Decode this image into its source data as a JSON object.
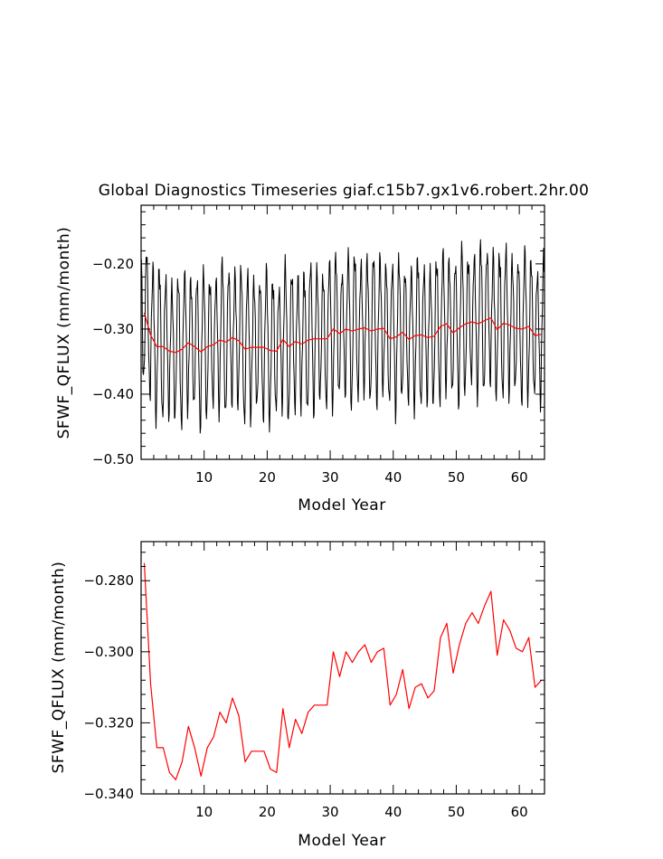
{
  "chart_data": [
    {
      "type": "line",
      "title": "Global Diagnostics Timeseries giaf.c15b7.gx1v6.robert.2hr.00",
      "xlabel": "Model Year",
      "ylabel": "SFWF_QFLUX (mm/month)",
      "xlim": [
        0,
        64
      ],
      "ylim": [
        -0.5,
        -0.11
      ],
      "xticks": [
        10,
        20,
        30,
        40,
        50,
        60
      ],
      "yticks": [
        -0.5,
        -0.4,
        -0.3,
        -0.2
      ],
      "ytick_labels": [
        "−0.50",
        "−0.40",
        "−0.30",
        "−0.20"
      ],
      "series": [
        {
          "kind": "monthly",
          "color": "#000000",
          "x_start": 0.0417,
          "x_step": 0.0833,
          "seasonal_cycle": [
            -0.24,
            -0.285,
            -0.34,
            -0.39,
            -0.415,
            -0.405,
            -0.36,
            -0.31,
            -0.26,
            -0.22,
            -0.205,
            -0.215
          ],
          "annual_means": [
            -0.275,
            -0.309,
            -0.327,
            -0.327,
            -0.334,
            -0.336,
            -0.331,
            -0.321,
            -0.327,
            -0.335,
            -0.327,
            -0.324,
            -0.317,
            -0.32,
            -0.313,
            -0.318,
            -0.331,
            -0.328,
            -0.328,
            -0.328,
            -0.333,
            -0.334,
            -0.316,
            -0.327,
            -0.319,
            -0.323,
            -0.317,
            -0.315,
            -0.315,
            -0.315,
            -0.3,
            -0.307,
            -0.3,
            -0.303,
            -0.3,
            -0.298,
            -0.303,
            -0.3,
            -0.299,
            -0.315,
            -0.312,
            -0.305,
            -0.316,
            -0.31,
            -0.309,
            -0.313,
            -0.311,
            -0.296,
            -0.292,
            -0.306,
            -0.298,
            -0.292,
            -0.289,
            -0.292,
            -0.287,
            -0.283,
            -0.301,
            -0.291,
            -0.294,
            -0.299,
            -0.3,
            -0.296,
            -0.31,
            -0.308
          ]
        },
        {
          "kind": "annual",
          "color": "#ff0000",
          "x": [
            0.5,
            1.5,
            2.5,
            3.5,
            4.5,
            5.5,
            6.5,
            7.5,
            8.5,
            9.5,
            10.5,
            11.5,
            12.5,
            13.5,
            14.5,
            15.5,
            16.5,
            17.5,
            18.5,
            19.5,
            20.5,
            21.5,
            22.5,
            23.5,
            24.5,
            25.5,
            26.5,
            27.5,
            28.5,
            29.5,
            30.5,
            31.5,
            32.5,
            33.5,
            34.5,
            35.5,
            36.5,
            37.5,
            38.5,
            39.5,
            40.5,
            41.5,
            42.5,
            43.5,
            44.5,
            45.5,
            46.5,
            47.5,
            48.5,
            49.5,
            50.5,
            51.5,
            52.5,
            53.5,
            54.5,
            55.5,
            56.5,
            57.5,
            58.5,
            59.5,
            60.5,
            61.5,
            62.5,
            63.5
          ],
          "y": [
            -0.275,
            -0.309,
            -0.327,
            -0.327,
            -0.334,
            -0.336,
            -0.331,
            -0.321,
            -0.327,
            -0.335,
            -0.327,
            -0.324,
            -0.317,
            -0.32,
            -0.313,
            -0.318,
            -0.331,
            -0.328,
            -0.328,
            -0.328,
            -0.333,
            -0.334,
            -0.316,
            -0.327,
            -0.319,
            -0.323,
            -0.317,
            -0.315,
            -0.315,
            -0.315,
            -0.3,
            -0.307,
            -0.3,
            -0.303,
            -0.3,
            -0.298,
            -0.303,
            -0.3,
            -0.299,
            -0.315,
            -0.312,
            -0.305,
            -0.316,
            -0.31,
            -0.309,
            -0.313,
            -0.311,
            -0.296,
            -0.292,
            -0.306,
            -0.298,
            -0.292,
            -0.289,
            -0.292,
            -0.287,
            -0.283,
            -0.301,
            -0.291,
            -0.294,
            -0.299,
            -0.3,
            -0.296,
            -0.31,
            -0.308
          ]
        }
      ]
    },
    {
      "type": "line",
      "title": "",
      "xlabel": "Model Year",
      "ylabel": "SFWF_QFLUX (mm/month)",
      "xlim": [
        0,
        64
      ],
      "ylim": [
        -0.34,
        -0.269
      ],
      "xticks": [
        10,
        20,
        30,
        40,
        50,
        60
      ],
      "yticks": [
        -0.34,
        -0.32,
        -0.3,
        -0.28
      ],
      "ytick_labels": [
        "−0.340",
        "−0.320",
        "−0.300",
        "−0.280"
      ],
      "series": [
        {
          "kind": "annual",
          "color": "#ff0000",
          "x": [
            0.5,
            1.5,
            2.5,
            3.5,
            4.5,
            5.5,
            6.5,
            7.5,
            8.5,
            9.5,
            10.5,
            11.5,
            12.5,
            13.5,
            14.5,
            15.5,
            16.5,
            17.5,
            18.5,
            19.5,
            20.5,
            21.5,
            22.5,
            23.5,
            24.5,
            25.5,
            26.5,
            27.5,
            28.5,
            29.5,
            30.5,
            31.5,
            32.5,
            33.5,
            34.5,
            35.5,
            36.5,
            37.5,
            38.5,
            39.5,
            40.5,
            41.5,
            42.5,
            43.5,
            44.5,
            45.5,
            46.5,
            47.5,
            48.5,
            49.5,
            50.5,
            51.5,
            52.5,
            53.5,
            54.5,
            55.5,
            56.5,
            57.5,
            58.5,
            59.5,
            60.5,
            61.5,
            62.5,
            63.5
          ],
          "y": [
            -0.275,
            -0.309,
            -0.327,
            -0.327,
            -0.334,
            -0.336,
            -0.331,
            -0.321,
            -0.327,
            -0.335,
            -0.327,
            -0.324,
            -0.317,
            -0.32,
            -0.313,
            -0.318,
            -0.331,
            -0.328,
            -0.328,
            -0.328,
            -0.333,
            -0.334,
            -0.316,
            -0.327,
            -0.319,
            -0.323,
            -0.317,
            -0.315,
            -0.315,
            -0.315,
            -0.3,
            -0.307,
            -0.3,
            -0.303,
            -0.3,
            -0.298,
            -0.303,
            -0.3,
            -0.299,
            -0.315,
            -0.312,
            -0.305,
            -0.316,
            -0.31,
            -0.309,
            -0.313,
            -0.311,
            -0.296,
            -0.292,
            -0.306,
            -0.298,
            -0.292,
            -0.289,
            -0.292,
            -0.287,
            -0.283,
            -0.301,
            -0.291,
            -0.294,
            -0.299,
            -0.3,
            -0.296,
            -0.31,
            -0.308
          ]
        }
      ]
    }
  ]
}
